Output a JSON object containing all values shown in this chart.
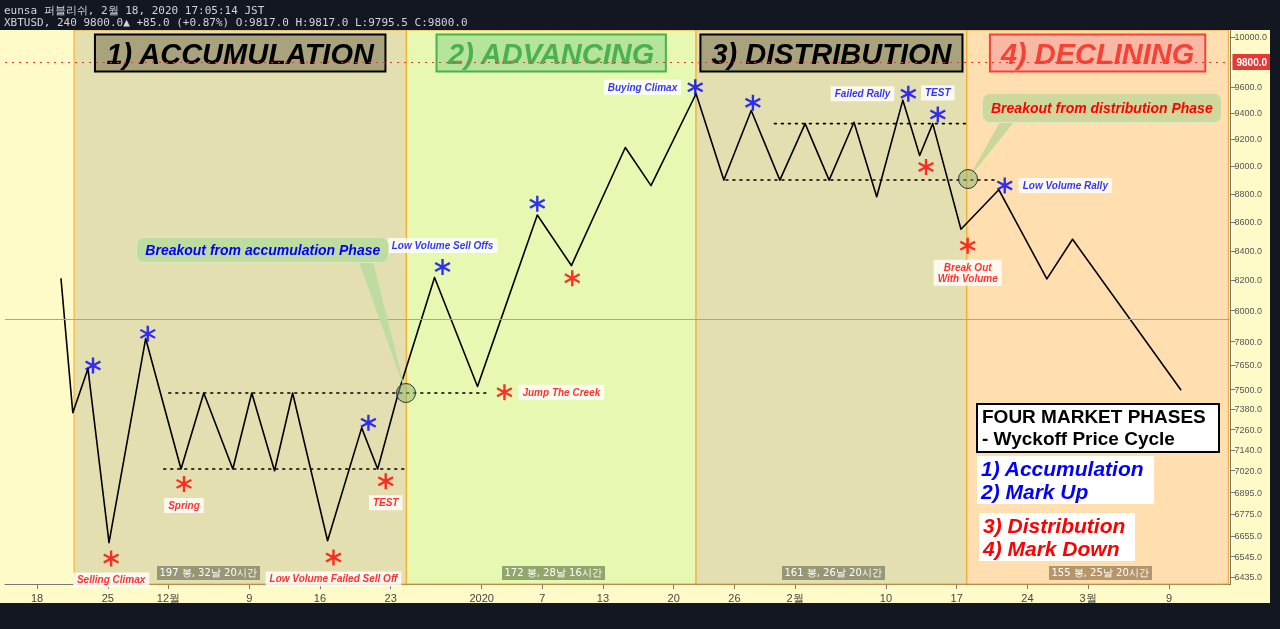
{
  "chart_data": {
    "type": "line",
    "log": "y",
    "grid": false,
    "xlim": [
      "2019-11-14T20:00",
      "2020-03-15T02:00"
    ],
    "xticks": [
      {
        "value": "2019-11-18",
        "label": "18"
      },
      {
        "value": "2019-11-25",
        "label": "25"
      },
      {
        "value": "2019-12-01",
        "label": "12월"
      },
      {
        "value": "2019-12-09",
        "label": "9"
      },
      {
        "value": "2019-12-16",
        "label": "16"
      },
      {
        "value": "2019-12-23",
        "label": "23"
      },
      {
        "value": "2020-01-01",
        "label": "2020"
      },
      {
        "value": "2020-01-07",
        "label": "7"
      },
      {
        "value": "2020-01-13",
        "label": "13"
      },
      {
        "value": "2020-01-20",
        "label": "20"
      },
      {
        "value": "2020-01-26",
        "label": "26"
      },
      {
        "value": "2020-02-01",
        "label": "2월"
      },
      {
        "value": "2020-02-10",
        "label": "10"
      },
      {
        "value": "2020-02-17",
        "label": "17"
      },
      {
        "value": "2020-02-24",
        "label": "24"
      },
      {
        "value": "2020-03-01",
        "label": "3월"
      },
      {
        "value": "2020-03-09",
        "label": "9"
      }
    ],
    "ylim": [
      6400,
      10060
    ],
    "yticks": [
      {
        "value": 6435,
        "label": "6435.0"
      },
      {
        "value": 6545,
        "label": "6545.0"
      },
      {
        "value": 6655,
        "label": "6655.0"
      },
      {
        "value": 6775,
        "label": "6775.0"
      },
      {
        "value": 6895,
        "label": "6895.0"
      },
      {
        "value": 7020,
        "label": "7020.0"
      },
      {
        "value": 7140,
        "label": "7140.0"
      },
      {
        "value": 7260,
        "label": "7260.0"
      },
      {
        "value": 7380,
        "label": "7380.0"
      },
      {
        "value": 7500,
        "label": "7500.0"
      },
      {
        "value": 7650,
        "label": "7650.0"
      },
      {
        "value": 7800,
        "label": "7800.0"
      },
      {
        "value": 8000,
        "label": "8000.0"
      },
      {
        "value": 8200,
        "label": "8200.0"
      },
      {
        "value": 8400,
        "label": "8400.0"
      },
      {
        "value": 8600,
        "label": "8600.0"
      },
      {
        "value": 8800,
        "label": "8800.0"
      },
      {
        "value": 9000,
        "label": "9000.0"
      },
      {
        "value": 9200,
        "label": "9200.0"
      },
      {
        "value": 9400,
        "label": "9400.0"
      },
      {
        "value": 9600,
        "label": "9600.0"
      },
      {
        "value": 10000,
        "label": "10000.0"
      }
    ],
    "series": [
      {
        "type": "line",
        "color": "#000000",
        "marker": "none",
        "line_style": "solid",
        "x": [
          "2019-11-20T09:00",
          "2019-11-21T13:00",
          "2019-11-23T01:00",
          "2019-11-25T03:00",
          "2019-11-28T18:00",
          "2019-12-02T06:00",
          "2019-12-04T12:00",
          "2019-12-07T09:00",
          "2019-12-09T06:00",
          "2019-12-11T12:00",
          "2019-12-13T07:00",
          "2019-12-16T18:00",
          "2019-12-20T03:00",
          "2019-12-21T17:00",
          "2019-12-23T18:00",
          "2019-12-27T08:00",
          "2019-12-31T14:00",
          "2020-01-06T12:00",
          "2020-01-09T21:00",
          "2020-01-15T05:00",
          "2020-01-17T18:00",
          "2020-01-22T05:00",
          "2020-01-24T23:00",
          "2020-01-27T16:00",
          "2020-01-30T12:00",
          "2020-02-02T00:00",
          "2020-02-04T09:00",
          "2020-02-06T20:00",
          "2020-02-09T02:00",
          "2020-02-11T16:00",
          "2020-02-13T08:00",
          "2020-02-14T15:00",
          "2020-02-17T10:00",
          "2020-02-21T04:00",
          "2020-02-25T22:00",
          "2020-02-28T11:00",
          "2020-03-10T04:00"
        ],
        "values": [
          8210,
          7360,
          7630,
          6620,
          7820,
          7030,
          7480,
          7030,
          7480,
          7020,
          7480,
          6630,
          7270,
          7030,
          7480,
          8220,
          7520,
          8650,
          8300,
          9140,
          8860,
          9550,
          8900,
          9420,
          8900,
          9320,
          8900,
          9330,
          8780,
          9500,
          9080,
          9320,
          8550,
          8830,
          8210,
          8480,
          7500
        ]
      },
      {
        "type": "line",
        "color": "#000000",
        "marker": "none",
        "line_style": "dotted",
        "x": [
          "2019-12-01T01:00",
          "2020-01-01T18:00"
        ],
        "values": [
          7480,
          7480
        ]
      },
      {
        "type": "line",
        "color": "#000000",
        "marker": "none",
        "line_style": "dotted",
        "x": [
          "2019-11-30T13:00",
          "2019-12-24T13:00"
        ],
        "values": [
          7030,
          7030
        ]
      },
      {
        "type": "line",
        "color": "#000000",
        "marker": "none",
        "line_style": "dotted",
        "x": [
          "2020-01-29T23:00",
          "2020-02-18T00:00"
        ],
        "values": [
          9320,
          9320
        ]
      },
      {
        "type": "line",
        "color": "#000000",
        "marker": "none",
        "line_style": "dotted",
        "x": [
          "2020-01-25T04:00",
          "2020-02-21T04:00"
        ],
        "values": [
          8900,
          8900
        ]
      },
      {
        "type": "scatter",
        "color": "#0000ff",
        "marker": "cross",
        "x": [
          "2019-11-23T13:00",
          "2019-11-28T23:00",
          "2019-12-20T19:00",
          "2019-12-28T03:00",
          "2020-01-06T12:00",
          "2020-01-22T03:00",
          "2020-01-27T20:00",
          "2020-02-12T05:00",
          "2020-02-15T03:00",
          "2020-02-21T18:00"
        ],
        "values": [
          7650,
          7850,
          7300,
          8290,
          8730,
          9600,
          9480,
          9550,
          9390,
          8860
        ],
        "value_labels": [
          null,
          null,
          null,
          "Low Volume Sell Offs",
          null,
          "Buying Climax",
          null,
          "Failed Rally",
          "TEST",
          "Low Volume Rally"
        ]
      },
      {
        "type": "scatter",
        "color": "#ff0000",
        "marker": "cross",
        "x": [
          "2019-11-25T08:00",
          "2019-12-02T13:00",
          "2019-12-17T08:00",
          "2019-12-22T12:00",
          "2020-01-03T06:00",
          "2020-01-09T23:00",
          "2020-02-13T23:00",
          "2020-02-18T02:00"
        ],
        "values": [
          6535,
          6945,
          6540,
          6960,
          7485,
          8215,
          8995,
          8435
        ],
        "value_labels": [
          "Selling Climax",
          "Spring",
          "Low Volume Failed Sell Off",
          "TEST",
          "Jump The Creek",
          null,
          null,
          "Break Out\nWith Volume"
        ]
      }
    ],
    "bands": [
      {
        "axis": "x",
        "from": "2019-11-21T16:00",
        "to": "2019-12-24T13:00",
        "label": "1) ACCUMULATION",
        "color": "#e3dfb0"
      },
      {
        "axis": "x",
        "from": "2019-12-24T13:00",
        "to": "2020-01-22T05:00",
        "label": "2) ADVANCING",
        "color": "#e6f8b2"
      },
      {
        "axis": "x",
        "from": "2020-01-22T05:00",
        "to": "2020-02-18T00:00",
        "label": "3) DISTRIBUTION",
        "color": "#e3dfb0"
      },
      {
        "axis": "x",
        "from": "2020-02-18T00:00",
        "to": "2020-03-14T21:00",
        "label": "4) DECLINING",
        "color": "#ffdfb0"
      }
    ],
    "ref_lines": [
      {
        "axis": "y",
        "value": 7945,
        "color": "#ff9800",
        "line_style": "solid"
      },
      {
        "axis": "y",
        "value": 9800,
        "label": "9800.0",
        "color": "#e53935",
        "line_style": "dotted"
      }
    ],
    "annotations": [
      "eunsa 퍼블리쉬, 2월 18, 2020 17:05:14 JST",
      "XBTUSD, 240 9800.0▲ +85.0 (+0.87%) O:9817.0 H:9817.0 L:9795.5 C:9800.0",
      {
        "text": "Breakout from accumulation Phase",
        "x": "2019-12-24T13:00",
        "y": 7480
      },
      "Breakout from distribution Phase",
      "FOUR MARKET PHASES\n- Wyckoff Price Cycle",
      "1) Accumulation\n2) Mark Up",
      "3) Distribution\n4) Mark Down",
      "197 봉, 32날 20시간",
      "172 봉, 28날 16시간",
      "161 봉, 26날 20시간",
      "155 봉, 25날 20시간"
    ]
  }
}
